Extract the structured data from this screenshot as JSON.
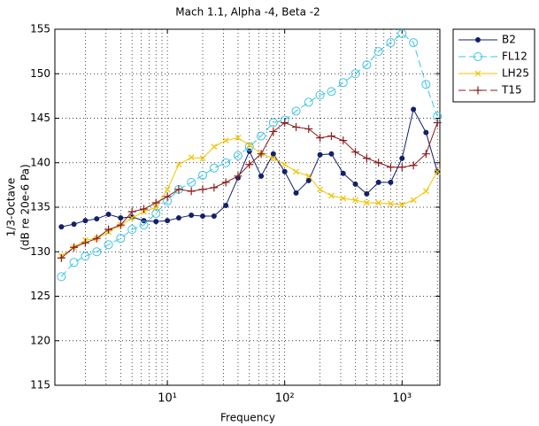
{
  "chart_data": {
    "type": "line",
    "title": "Mach 1.1, Alpha -4, Beta -2",
    "xlabel": "Frequency",
    "ylabel": [
      "1/3-Octave",
      "(dB re 20e-6 Pa)"
    ],
    "x": [
      1.25,
      1.6,
      2,
      2.5,
      3.15,
      4,
      5,
      6.3,
      8,
      10,
      12.5,
      16,
      20,
      25,
      31.5,
      40,
      50,
      63,
      80,
      100,
      125,
      160,
      200,
      250,
      315,
      400,
      500,
      630,
      800,
      1000,
      1250,
      1600,
      2000
    ],
    "xlog": true,
    "xlim": [
      1.1,
      2100
    ],
    "xticks": [
      {
        "value": 10,
        "label": "10¹"
      },
      {
        "value": 100,
        "label": "10²"
      },
      {
        "value": 1000,
        "label": "10³"
      }
    ],
    "ylim": [
      115,
      155
    ],
    "yticks": [
      115,
      120,
      125,
      130,
      135,
      140,
      145,
      150,
      155
    ],
    "grid": true,
    "minor_grid": true,
    "legend": "outside-upper-right",
    "series": [
      {
        "name": "B2",
        "color": "#13206b",
        "line_style": "solid",
        "marker": "dot",
        "values": [
          132.8,
          133.1,
          133.5,
          133.7,
          134.2,
          133.8,
          133.9,
          133.5,
          133.4,
          133.5,
          133.8,
          134.1,
          134.0,
          134.0,
          135.2,
          138.3,
          141.3,
          138.5,
          141.0,
          139.0,
          136.6,
          138.0,
          140.9,
          141.0,
          138.8,
          137.6,
          136.5,
          137.8,
          137.8,
          140.5,
          146.0,
          143.4,
          139.0
        ]
      },
      {
        "name": "FL12",
        "color": "#3cc4e6",
        "line_style": "dash",
        "marker": "circle",
        "values": [
          127.2,
          128.8,
          129.5,
          130.0,
          130.8,
          131.5,
          132.5,
          133.0,
          134.3,
          135.7,
          137.0,
          137.8,
          138.6,
          139.4,
          140.0,
          140.8,
          141.8,
          143.0,
          144.5,
          144.8,
          145.8,
          146.8,
          147.6,
          148.0,
          149.0,
          150.0,
          151.0,
          152.5,
          153.5,
          154.5,
          153.5,
          148.8,
          145.2
        ]
      },
      {
        "name": "LH25",
        "color": "#f2c200",
        "line_style": "solid",
        "marker": "x",
        "values": [
          129.5,
          130.5,
          131.3,
          131.5,
          132.2,
          133.0,
          133.8,
          134.5,
          135.0,
          137.0,
          139.8,
          140.6,
          140.5,
          141.8,
          142.5,
          142.8,
          142.0,
          141.0,
          140.5,
          139.8,
          139.0,
          138.5,
          137.0,
          136.3,
          136.0,
          135.8,
          135.5,
          135.5,
          135.4,
          135.3,
          135.8,
          136.8,
          139.0
        ]
      },
      {
        "name": "T15",
        "color": "#8a1c1c",
        "line_style": "solid",
        "marker": "plus",
        "values": [
          129.3,
          130.5,
          131.0,
          131.5,
          132.5,
          133.0,
          134.5,
          134.8,
          135.5,
          136.2,
          137.0,
          136.8,
          137.0,
          137.2,
          137.8,
          138.5,
          139.8,
          141.0,
          143.5,
          144.5,
          144.0,
          143.8,
          142.8,
          143.0,
          142.5,
          141.2,
          140.5,
          140.0,
          139.5,
          139.5,
          139.7,
          141.0,
          144.5
        ]
      }
    ]
  }
}
